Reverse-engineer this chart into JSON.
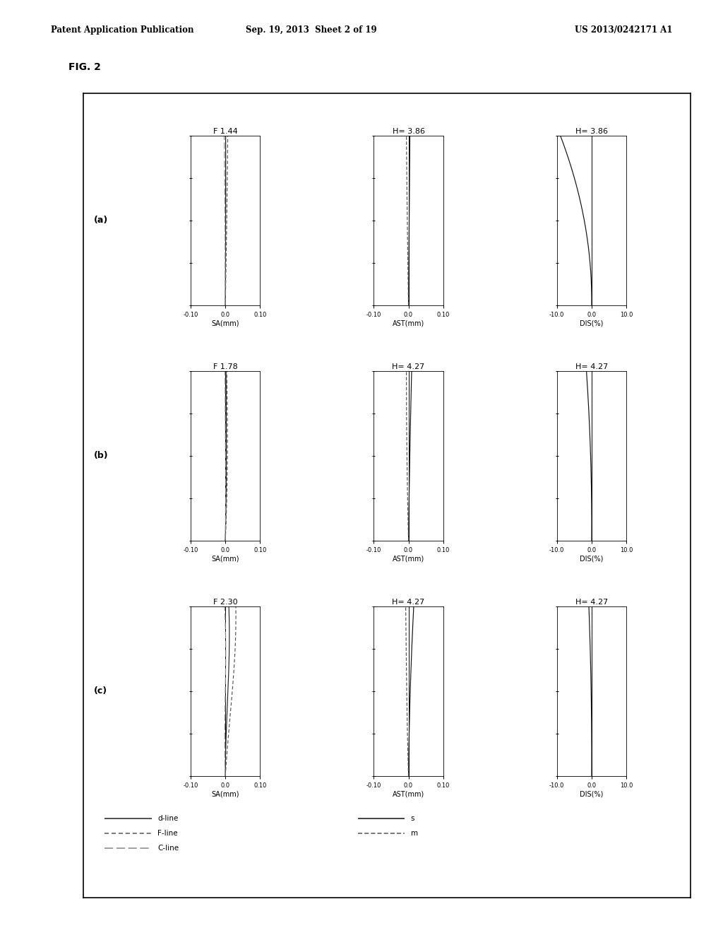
{
  "fig_label": "FIG. 2",
  "header_left": "Patent Application Publication",
  "header_mid": "Sep. 19, 2013  Sheet 2 of 19",
  "header_right": "US 2013/0242171 A1",
  "rows": [
    {
      "label": "(a)",
      "sa_title": "F 1.44",
      "ast_title": "H= 3.86",
      "dis_title": "H= 3.86"
    },
    {
      "label": "(b)",
      "sa_title": "F 1.78",
      "ast_title": "H= 4.27",
      "dis_title": "H= 4.27"
    },
    {
      "label": "(c)",
      "sa_title": "F 2.30",
      "ast_title": "H= 4.27",
      "dis_title": "H= 4.27"
    }
  ],
  "sa_xlim": [
    -0.1,
    0.1
  ],
  "ast_xlim": [
    -0.1,
    0.1
  ],
  "dis_xlim": [
    -10.0,
    10.0
  ],
  "ylim": [
    0.0,
    1.0
  ],
  "sa_xlabel": "SA(mm)",
  "ast_xlabel": "AST(mm)",
  "dis_xlabel": "DIS(%)",
  "sa_xticks": [
    -0.1,
    0.0,
    0.1
  ],
  "ast_xticks": [
    -0.1,
    0.0,
    0.1
  ],
  "dis_xticks": [
    -10.0,
    0.0,
    10.0
  ],
  "ytick_positions": [
    0.0,
    0.25,
    0.5,
    0.75,
    1.0
  ],
  "background_color": "#ffffff"
}
